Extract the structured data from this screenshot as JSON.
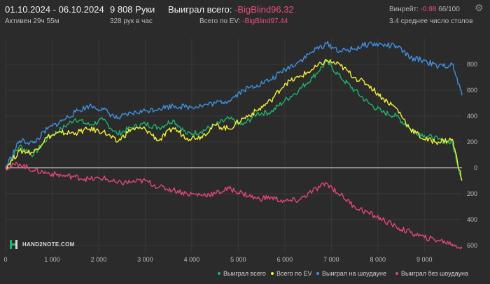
{
  "header": {
    "date_range": "01.10.2024 - 06.10.2024",
    "active": "Активен 29ч 55м",
    "hands": "9 808 Руки",
    "hands_per_hour": "328 рук в час",
    "won_total_label": "Выиграл всего:",
    "won_total_value": "-BigBlind96.32",
    "ev_label": "Всего по EV:",
    "ev_value": "-BigBlind97.44",
    "winrate_label": "Винрейт:",
    "winrate_value": "-0.98",
    "winrate_suffix": "66/100",
    "avg_tables": "3.4 среднее число столов"
  },
  "logo": {
    "text": "HAND2NOTE.COM"
  },
  "icons": {
    "settings": "gear-icon",
    "logo": "hand2note-logo-icon"
  },
  "colors": {
    "background": "#2b2b2b",
    "won_total": "#1fb36b",
    "ev": "#f3f038",
    "showdown": "#3f8fe0",
    "no_showdown": "#e0457a",
    "negative_text": "#e8507a"
  },
  "chart_data": {
    "type": "line",
    "xlabel": "",
    "ylabel": "",
    "xlim": [
      0,
      9808
    ],
    "ylim": [
      -650,
      1000
    ],
    "x_ticks": [
      0,
      1000,
      2000,
      3000,
      4000,
      5000,
      6000,
      7000,
      8000,
      9000
    ],
    "x_tick_labels": [
      "0",
      "1 000",
      "2 000",
      "3 000",
      "4 000",
      "5 000",
      "6 000",
      "7 000",
      "8 000",
      "9 000"
    ],
    "y_ticks": [
      -600,
      -400,
      -200,
      0,
      200,
      400,
      600,
      800
    ],
    "y_tick_labels": [
      "600",
      "400",
      "200",
      "0",
      "200",
      "400",
      "600",
      "800"
    ],
    "legend_position": "bottom",
    "grid": true,
    "x": [
      0,
      300,
      600,
      900,
      1200,
      1500,
      1800,
      2100,
      2400,
      2700,
      3000,
      3300,
      3600,
      3900,
      4200,
      4500,
      4800,
      5100,
      5400,
      5700,
      6000,
      6300,
      6600,
      6900,
      7200,
      7500,
      7800,
      8100,
      8400,
      8700,
      9000,
      9300,
      9600,
      9808
    ],
    "series": [
      {
        "name": "Выиграл всего",
        "color": "#1fb36b",
        "values": [
          0,
          170,
          100,
          230,
          300,
          380,
          330,
          370,
          260,
          310,
          340,
          310,
          370,
          260,
          280,
          330,
          380,
          330,
          420,
          430,
          520,
          600,
          700,
          820,
          700,
          600,
          500,
          430,
          400,
          300,
          250,
          220,
          190,
          -100
        ]
      },
      {
        "name": "Всего по EV",
        "color": "#f3f038",
        "values": [
          0,
          130,
          120,
          240,
          270,
          270,
          300,
          280,
          200,
          300,
          300,
          210,
          310,
          230,
          240,
          330,
          300,
          380,
          440,
          520,
          650,
          700,
          760,
          830,
          790,
          700,
          640,
          540,
          460,
          300,
          220,
          200,
          220,
          -97
        ]
      },
      {
        "name": "Выиграл на шоудауне",
        "color": "#3f8fe0",
        "values": [
          0,
          210,
          190,
          300,
          360,
          430,
          480,
          450,
          380,
          420,
          440,
          460,
          480,
          470,
          480,
          500,
          520,
          600,
          640,
          680,
          760,
          820,
          900,
          960,
          900,
          920,
          960,
          950,
          940,
          850,
          830,
          780,
          800,
          560
        ]
      },
      {
        "name": "Выиграл без шоудауна",
        "color": "#e0457a",
        "values": [
          0,
          30,
          -20,
          -40,
          -60,
          -70,
          -90,
          -80,
          -120,
          -110,
          -100,
          -150,
          -170,
          -200,
          -210,
          -200,
          -160,
          -200,
          -240,
          -230,
          -260,
          -250,
          -180,
          -120,
          -210,
          -300,
          -350,
          -400,
          -460,
          -500,
          -540,
          -560,
          -590,
          -620
        ]
      }
    ]
  }
}
